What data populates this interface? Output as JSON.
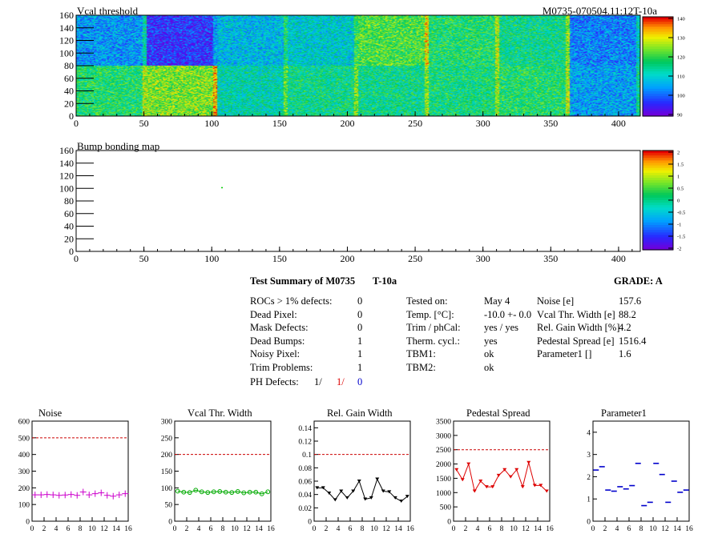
{
  "header": {
    "map_title": "Vcal threshold",
    "module_id": "M0735-070504.11:12T-10a",
    "bump_title": "Bump bonding map"
  },
  "maps": {
    "x_ticks": [
      0,
      50,
      100,
      150,
      200,
      250,
      300,
      350,
      400
    ],
    "y_ticks": [
      0,
      20,
      40,
      60,
      80,
      100,
      120,
      140,
      160
    ],
    "vcal_palette_labels": [
      "140",
      "130",
      "120",
      "110",
      "100",
      "90"
    ],
    "bump_palette_labels": [
      "2",
      "1.5",
      "1",
      "0.5",
      "0",
      "-0.5",
      "-1",
      "-1.5",
      "-2"
    ]
  },
  "summary": {
    "title": "Test Summary of M0735",
    "test_id": "T-10a",
    "grade": "GRADE:  A",
    "left_rows": [
      {
        "label": "ROCs > 1% defects:",
        "value": "0"
      },
      {
        "label": "Dead Pixel:",
        "value": "0"
      },
      {
        "label": "Mask Defects:",
        "value": "0"
      },
      {
        "label": "Dead Bumps:",
        "value": "1"
      },
      {
        "label": "Noisy Pixel:",
        "value": "1"
      },
      {
        "label": "Trim Problems:",
        "value": "1"
      }
    ],
    "ph_label": "PH Defects:",
    "ph_values": [
      {
        "text": "1/",
        "color": "#000000"
      },
      {
        "text": "1/",
        "color": "#dd0000"
      },
      {
        "text": "0",
        "color": "#0000cc"
      }
    ],
    "mid_rows": [
      {
        "label": "Tested on:",
        "value": "May 4"
      },
      {
        "label": "Temp. [°C]:",
        "value": "-10.0 +- 0.0"
      },
      {
        "label": "Trim / phCal:",
        "value": "yes / yes"
      },
      {
        "label": "Therm. cycl.:",
        "value": "yes"
      },
      {
        "label": "TBM1:",
        "value": "ok"
      },
      {
        "label": "TBM2:",
        "value": "ok"
      }
    ],
    "right_rows": [
      {
        "label": "Noise [e]",
        "value": "157.6"
      },
      {
        "label": "Vcal Thr. Width [e]",
        "value": "88.2"
      },
      {
        "label": "Rel. Gain Width [%]",
        "value": "4.2"
      },
      {
        "label": "Pedestal Spread [e]",
        "value": "1516.4"
      },
      {
        "label": "Parameter1 []",
        "value": "1.6"
      }
    ]
  },
  "chart_data": [
    {
      "type": "scatter",
      "title": "Noise",
      "color": "#cc00cc",
      "marker": "cross",
      "x": [
        0,
        1,
        2,
        3,
        4,
        5,
        6,
        7,
        8,
        9,
        10,
        11,
        12,
        13,
        14,
        15
      ],
      "values": [
        158,
        158,
        160,
        158,
        155,
        157,
        160,
        155,
        175,
        158,
        165,
        170,
        155,
        150,
        158,
        165
      ],
      "ylim": [
        0,
        600
      ],
      "y_ticks": [
        0,
        100,
        200,
        300,
        400,
        500,
        600
      ],
      "x_ticks": [
        0,
        2,
        4,
        6,
        8,
        10,
        12,
        14,
        16
      ],
      "xlim": [
        0,
        16
      ],
      "limit": 500,
      "connect": false
    },
    {
      "type": "line",
      "title": "Vcal Thr. Width",
      "color": "#00aa00",
      "marker": "circle",
      "x": [
        0,
        1,
        2,
        3,
        4,
        5,
        6,
        7,
        8,
        9,
        10,
        11,
        12,
        13,
        14,
        15
      ],
      "values": [
        90,
        87,
        86,
        93,
        88,
        86,
        88,
        89,
        87,
        86,
        89,
        85,
        87,
        87,
        82,
        88
      ],
      "ylim": [
        0,
        300
      ],
      "y_ticks": [
        0,
        50,
        100,
        150,
        200,
        250,
        300
      ],
      "x_ticks": [
        0,
        2,
        4,
        6,
        8,
        10,
        12,
        14,
        16
      ],
      "xlim": [
        0,
        16
      ],
      "limit": 200,
      "connect": true
    },
    {
      "type": "line",
      "title": "Rel. Gain Width",
      "color": "#000000",
      "marker": "triangle",
      "x": [
        0,
        1,
        2,
        3,
        4,
        5,
        6,
        7,
        8,
        9,
        10,
        11,
        12,
        13,
        14,
        15
      ],
      "values": [
        0.05,
        0.05,
        0.042,
        0.032,
        0.045,
        0.035,
        0.045,
        0.06,
        0.033,
        0.035,
        0.063,
        0.045,
        0.044,
        0.035,
        0.03,
        0.037
      ],
      "ylim": [
        0,
        0.15
      ],
      "y_ticks": [
        0,
        0.02,
        0.04,
        0.06,
        0.08,
        0.1,
        0.12,
        0.14
      ],
      "x_ticks": [
        0,
        2,
        4,
        6,
        8,
        10,
        12,
        14,
        16
      ],
      "xlim": [
        0,
        16
      ],
      "limit": 0.1,
      "connect": true
    },
    {
      "type": "line",
      "title": "Pedestal Spread",
      "color": "#dd0000",
      "marker": "triangle",
      "x": [
        0,
        1,
        2,
        3,
        4,
        5,
        6,
        7,
        8,
        9,
        10,
        11,
        12,
        13,
        14,
        15
      ],
      "values": [
        1800,
        1450,
        2000,
        1050,
        1400,
        1200,
        1200,
        1600,
        1800,
        1550,
        1800,
        1200,
        2050,
        1250,
        1250,
        1050
      ],
      "ylim": [
        0,
        3500
      ],
      "y_ticks": [
        0,
        500,
        1000,
        1500,
        2000,
        2500,
        3000,
        3500
      ],
      "x_ticks": [
        0,
        2,
        4,
        6,
        8,
        10,
        12,
        14,
        16
      ],
      "xlim": [
        0,
        16
      ],
      "limit": 2500,
      "connect": true
    },
    {
      "type": "scatter",
      "title": "Parameter1",
      "color": "#0000cc",
      "marker": "dash",
      "x": [
        0,
        1,
        2,
        3,
        4,
        5,
        6,
        7,
        8,
        9,
        10,
        11,
        12,
        13,
        14,
        15
      ],
      "values": [
        2.3,
        2.45,
        1.4,
        1.35,
        1.55,
        1.45,
        1.6,
        2.6,
        0.7,
        0.85,
        2.6,
        2.1,
        0.85,
        1.8,
        1.3,
        1.4
      ],
      "ylim": [
        0,
        4.5
      ],
      "y_ticks": [
        0,
        1,
        2,
        3,
        4
      ],
      "x_ticks": [
        0,
        2,
        4,
        6,
        8,
        10,
        12,
        14,
        16
      ],
      "xlim": [
        0,
        16
      ],
      "limit": null,
      "connect": false
    }
  ]
}
